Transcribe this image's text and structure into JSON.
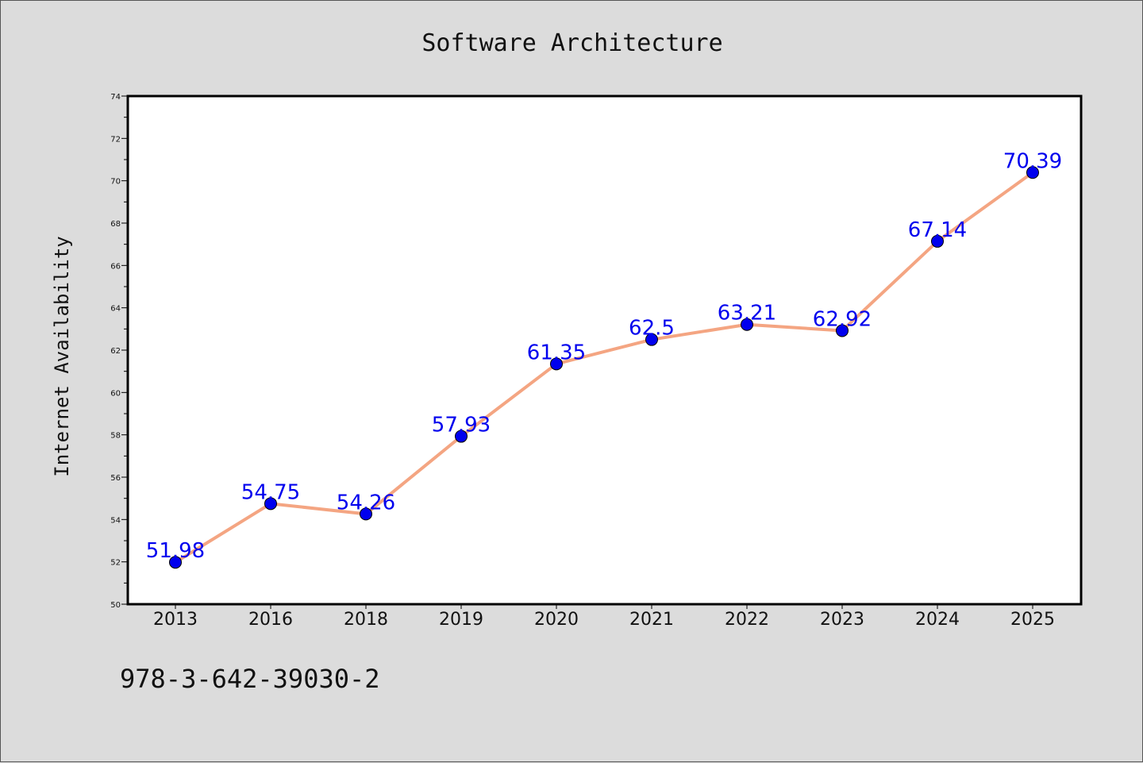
{
  "chart_data": {
    "type": "line",
    "title": "Software Architecture",
    "xlabel": "",
    "ylabel": "Internet Availability",
    "categories": [
      "2013",
      "2016",
      "2018",
      "2019",
      "2020",
      "2021",
      "2022",
      "2023",
      "2024",
      "2025"
    ],
    "series": [
      {
        "values": [
          51.98,
          54.75,
          54.26,
          57.93,
          61.35,
          62.5,
          63.21,
          62.92,
          67.14,
          70.39
        ],
        "labels": [
          "51.98",
          "54.75",
          "54.26",
          "57.93",
          "61.35",
          "62.5",
          "63.21",
          "62.92",
          "67.14",
          "70.39"
        ]
      }
    ],
    "ylim": [
      50,
      74
    ],
    "yticks": [
      "50",
      "52",
      "54",
      "56",
      "58",
      "60",
      "62",
      "64",
      "66",
      "68",
      "70",
      "72",
      "74"
    ],
    "grid": false,
    "legend": "none",
    "colors": {
      "line": "#f4a582",
      "marker": "#0000ee",
      "data_label": "#0000ee",
      "background": "#dcdcdc",
      "plot_area": "#ffffff"
    }
  },
  "footer_text": "978-3-642-39030-2"
}
